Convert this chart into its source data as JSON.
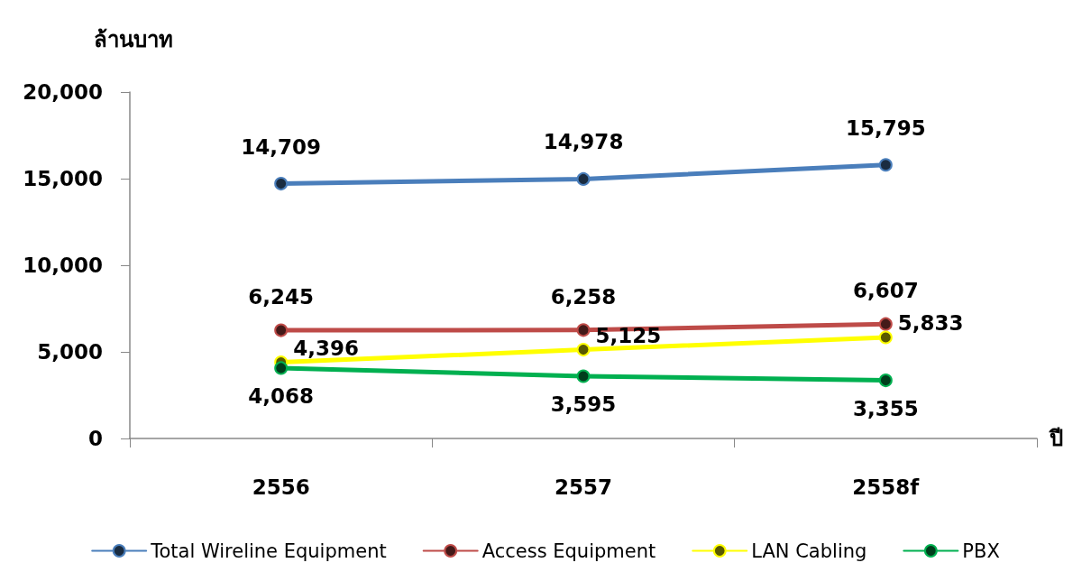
{
  "chart_data": {
    "type": "line",
    "ylabel": "ล้านบาท",
    "xlabel": "ปี",
    "categories": [
      "2556",
      "2557",
      "2558f"
    ],
    "series": [
      {
        "name": "Total Wireline Equipment",
        "color": "#4a7ebb",
        "values": [
          14709,
          14978,
          15795
        ],
        "value_labels": [
          "14,709",
          "14,978",
          "15,795"
        ]
      },
      {
        "name": "Access Equipment",
        "color": "#be4b48",
        "values": [
          6245,
          6258,
          6607
        ],
        "value_labels": [
          "6,245",
          "6,258",
          "6,607"
        ]
      },
      {
        "name": "LAN Cabling",
        "color": "#ffff00",
        "values": [
          4396,
          5125,
          5833
        ],
        "value_labels": [
          "4,396",
          "5,125",
          "5,833"
        ]
      },
      {
        "name": "PBX",
        "color": "#00b050",
        "values": [
          4068,
          3595,
          3355
        ],
        "value_labels": [
          "4,068",
          "3,595",
          "3,355"
        ]
      }
    ],
    "ylim": [
      0,
      20000
    ],
    "yticks": [
      0,
      {
        "value": 5000,
        "label": "5,000"
      },
      {
        "value": 10000,
        "label": "10,000"
      },
      {
        "value": 15000,
        "label": "15,000"
      },
      {
        "value": 20000,
        "label": "20,000"
      }
    ],
    "grid": false,
    "legend": "bottom",
    "marker": "circle",
    "line_style": "solid"
  }
}
